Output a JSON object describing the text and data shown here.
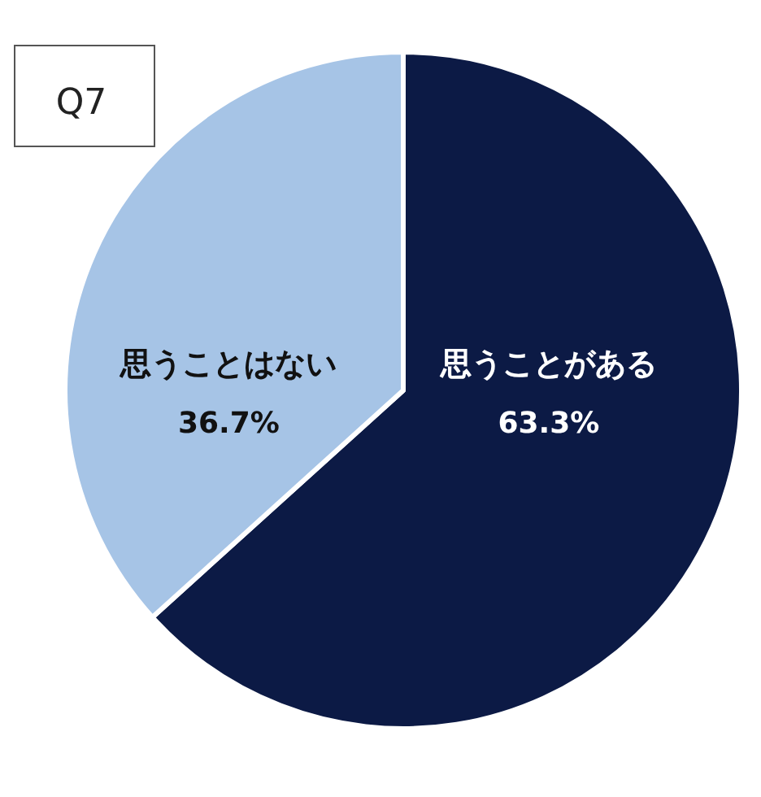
{
  "chart_data": {
    "type": "pie",
    "title": "Q7",
    "categories": [
      "思うことがある",
      "思うことはない"
    ],
    "values": [
      63.3,
      36.7
    ],
    "colors": [
      "#0c1a45",
      "#a6c4e6"
    ],
    "value_labels": [
      "63.3%",
      "36.7%"
    ]
  }
}
